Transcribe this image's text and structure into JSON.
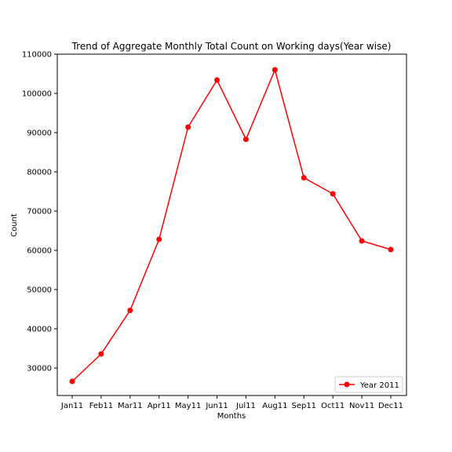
{
  "chart_data": {
    "type": "line",
    "title": "Trend of Aggregate Monthly Total Count on Working days(Year wise)",
    "xlabel": "Months",
    "ylabel": "Count",
    "categories": [
      "Jan11",
      "Feb11",
      "Mar11",
      "Apr11",
      "May11",
      "Jun11",
      "Jul11",
      "Aug11",
      "Sep11",
      "Oct11",
      "Nov11",
      "Dec11"
    ],
    "series": [
      {
        "name": "Year 2011",
        "color": "#ff0000",
        "values": [
          26600,
          33600,
          44700,
          62800,
          91400,
          103400,
          88300,
          106000,
          78500,
          74400,
          62400,
          60200
        ]
      }
    ],
    "ylim": [
      23000,
      110000
    ],
    "yticks": [
      30000,
      40000,
      50000,
      60000,
      70000,
      80000,
      90000,
      100000,
      110000
    ],
    "grid": false,
    "legend_position": "bottom-right"
  }
}
